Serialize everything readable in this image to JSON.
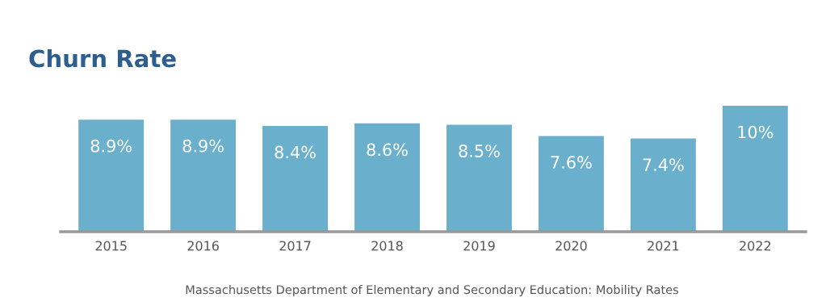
{
  "chart_data": {
    "type": "bar",
    "title": "Churn Rate",
    "categories": [
      "2015",
      "2016",
      "2017",
      "2018",
      "2019",
      "2020",
      "2021",
      "2022"
    ],
    "values": [
      8.9,
      8.9,
      8.4,
      8.6,
      8.5,
      7.6,
      7.4,
      10
    ],
    "value_labels": [
      "8.9%",
      "8.9%",
      "8.4%",
      "8.6%",
      "8.5%",
      "7.6%",
      "7.4%",
      "10%"
    ],
    "color": "#6ab0cc",
    "ylim": [
      0,
      10
    ],
    "grid": false,
    "tick_labels": "x",
    "annotations": [
      "Massachusetts Department of Elementary and Secondary Education: Mobility Rates"
    ]
  }
}
